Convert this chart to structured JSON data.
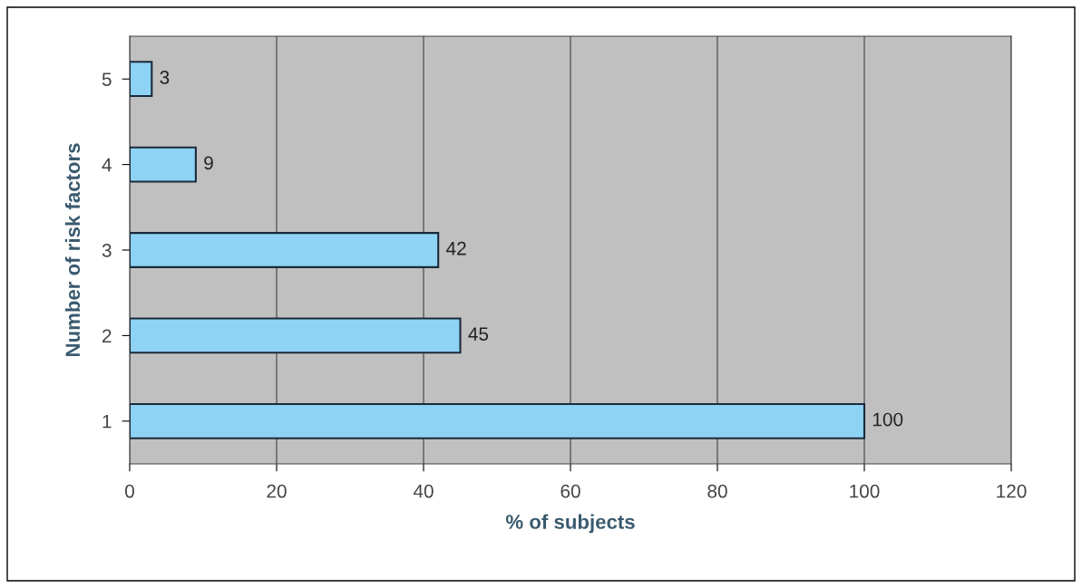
{
  "chart_data": {
    "type": "bar",
    "orientation": "horizontal",
    "xlabel": "% of subjects",
    "ylabel": "Number of risk factors",
    "categories": [
      "5",
      "4",
      "3",
      "2",
      "1"
    ],
    "values": [
      3,
      9,
      42,
      45,
      100
    ],
    "color": "#8fd3f4",
    "xlim": [
      0,
      120
    ],
    "xticks": [
      0,
      20,
      40,
      60,
      80,
      100,
      120
    ],
    "grid": "x",
    "data_labels": true
  }
}
